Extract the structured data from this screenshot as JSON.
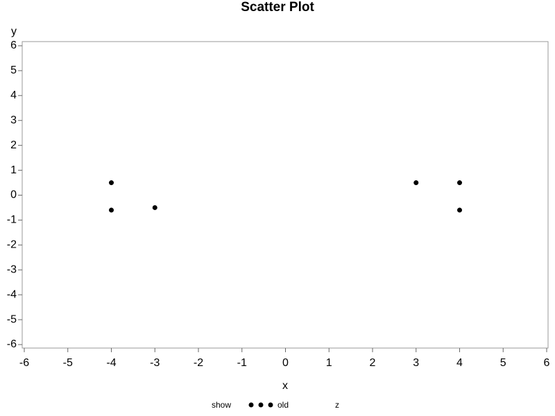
{
  "chart_data": {
    "type": "scatter",
    "title": "Scatter Plot",
    "x_label": "x",
    "y_label": "y",
    "series": [
      {
        "name": "old",
        "color": "#000000",
        "x": [
          -4,
          -4,
          -3,
          3,
          4,
          4
        ],
        "values": [
          0.5,
          -0.6,
          -0.5,
          0.5,
          0.5,
          -0.6
        ]
      }
    ],
    "xlim": [
      -6,
      6
    ],
    "ylim": [
      -6,
      6
    ],
    "xticks": [
      -6,
      -5,
      -4,
      -3,
      -2,
      -1,
      0,
      1,
      2,
      3,
      4,
      5,
      6
    ],
    "yticks": [
      -6,
      -5,
      -4,
      -3,
      -2,
      -1,
      0,
      1,
      2,
      3,
      4,
      5,
      6
    ],
    "legend_title": "show",
    "legend_extra_label": "z",
    "grid": false
  }
}
